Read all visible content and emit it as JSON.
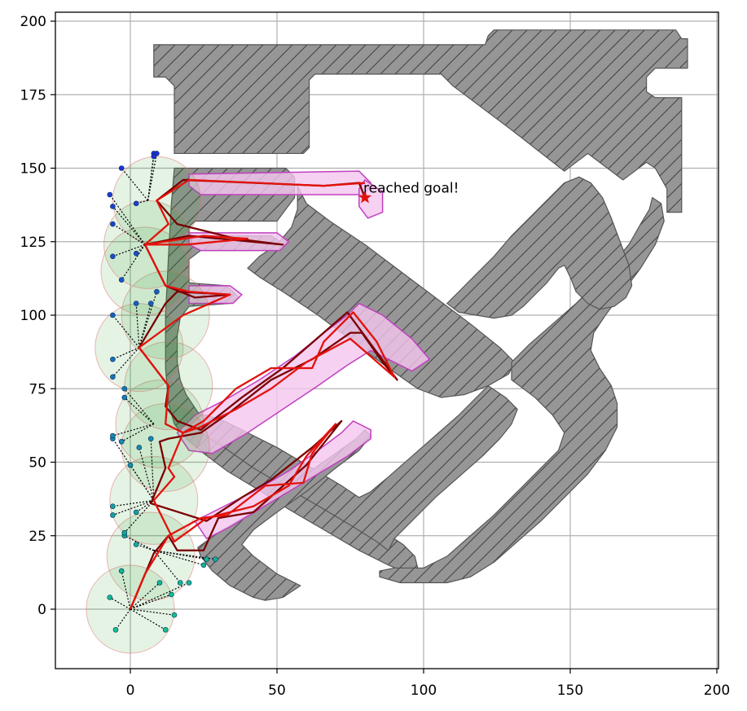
{
  "chart_data": {
    "type": "scatter",
    "title": "",
    "xlabel": "",
    "ylabel": "",
    "xlim": [
      -25,
      200
    ],
    "ylim": [
      -20,
      203
    ],
    "xticks": [
      0,
      50,
      100,
      150,
      200
    ],
    "yticks": [
      0,
      25,
      50,
      75,
      100,
      125,
      150,
      175,
      200
    ],
    "xtick_labels": [
      "0",
      "50",
      "100",
      "150",
      "200"
    ],
    "ytick_labels": [
      "0",
      "25",
      "50",
      "75",
      "100",
      "125",
      "150",
      "175",
      "200"
    ],
    "grid": true,
    "annotation": {
      "text": "reached goal!",
      "x": 80,
      "y": 140
    },
    "goal": {
      "x": 80,
      "y": 140
    },
    "colors": {
      "obstacle_fill": "#969696",
      "obstacle_edge": "#555555",
      "path": "#e3120b",
      "ref_path": "#7a0000",
      "region_fill": "#f4c6ee",
      "region_edge": "#c040c0",
      "circle_fill": "#2ca02c",
      "circle_edge": "#e07070",
      "goal": "#e3120b",
      "grid": "#b0b0b0"
    },
    "obstacles": [
      [
        [
          8,
          190
        ],
        [
          8,
          192
        ],
        [
          121,
          192
        ],
        [
          122,
          195
        ],
        [
          124,
          197
        ],
        [
          186,
          197
        ],
        [
          188,
          194
        ],
        [
          190,
          194
        ],
        [
          190,
          184
        ],
        [
          179,
          184
        ],
        [
          177,
          182
        ],
        [
          176,
          176
        ],
        [
          179,
          172
        ],
        [
          184,
          172
        ],
        [
          188,
          168
        ],
        [
          188,
          135
        ],
        [
          186,
          133
        ],
        [
          183,
          133
        ],
        [
          170,
          147
        ],
        [
          169,
          152
        ],
        [
          166,
          154
        ],
        [
          158,
          148
        ],
        [
          157,
          144
        ],
        [
          154,
          141
        ],
        [
          130,
          160
        ],
        [
          124,
          164
        ],
        [
          111,
          172
        ],
        [
          104,
          178
        ],
        [
          106,
          182
        ],
        [
          63,
          182
        ],
        [
          61,
          180
        ],
        [
          61,
          158
        ],
        [
          59,
          155
        ],
        [
          15,
          155
        ],
        [
          15,
          150
        ],
        [
          53,
          150
        ],
        [
          56,
          147
        ],
        [
          56,
          119
        ],
        [
          60,
          113
        ],
        [
          73,
          107
        ],
        [
          89,
          98
        ],
        [
          99,
          90
        ],
        [
          111,
          80
        ],
        [
          129,
          71
        ],
        [
          131,
          70
        ],
        [
          131,
          67
        ],
        [
          137,
          64
        ],
        [
          141,
          61
        ],
        [
          139,
          57
        ],
        [
          134,
          53
        ],
        [
          128,
          49
        ],
        [
          121,
          45
        ],
        [
          112,
          38
        ],
        [
          96,
          30
        ],
        [
          88,
          25
        ],
        [
          78,
          20
        ],
        [
          70,
          15
        ],
        [
          60,
          8
        ],
        [
          52,
          4
        ],
        [
          48,
          3
        ],
        [
          45,
          4
        ],
        [
          44,
          4
        ],
        [
          34,
          8
        ],
        [
          26,
          15
        ],
        [
          23,
          21
        ],
        [
          24,
          21
        ],
        [
          32,
          27
        ],
        [
          43,
          33
        ],
        [
          55,
          42
        ],
        [
          63,
          48
        ],
        [
          71,
          54
        ],
        [
          79,
          60
        ],
        [
          82,
          59
        ],
        [
          86,
          55
        ],
        [
          88,
          52
        ],
        [
          92,
          48
        ],
        [
          100,
          41
        ],
        [
          110,
          33
        ],
        [
          117,
          28
        ],
        [
          120,
          28
        ],
        [
          124,
          31
        ],
        [
          127,
          33
        ],
        [
          132,
          37
        ],
        [
          124,
          46
        ],
        [
          120,
          51
        ],
        [
          117,
          55
        ],
        [
          114,
          59
        ],
        [
          106,
          65
        ],
        [
          96,
          74
        ],
        [
          90,
          79
        ],
        [
          88,
          83
        ],
        [
          85,
          86
        ],
        [
          80,
          92
        ],
        [
          74,
          97
        ],
        [
          70,
          101
        ],
        [
          68,
          104
        ],
        [
          62,
          107
        ],
        [
          53,
          112
        ],
        [
          47,
          116
        ],
        [
          43,
          120
        ],
        [
          40,
          123
        ],
        [
          37,
          124
        ],
        [
          32,
          124
        ],
        [
          27,
          120
        ],
        [
          25,
          117
        ],
        [
          21,
          112
        ],
        [
          18,
          107
        ],
        [
          15,
          103
        ],
        [
          13,
          98
        ],
        [
          12,
          93
        ],
        [
          12,
          87
        ],
        [
          13,
          82
        ],
        [
          15,
          77
        ],
        [
          18,
          72
        ],
        [
          20,
          68
        ],
        [
          23,
          64
        ],
        [
          27,
          60
        ],
        [
          32,
          57
        ],
        [
          37,
          55
        ],
        [
          41,
          53
        ],
        [
          44,
          50
        ],
        [
          46,
          47
        ],
        [
          47,
          43
        ],
        [
          47,
          38
        ],
        [
          45,
          34
        ],
        [
          42,
          31
        ],
        [
          38,
          29
        ],
        [
          33,
          28
        ],
        [
          28,
          27
        ],
        [
          24,
          26
        ],
        [
          20,
          26
        ],
        [
          15,
          26
        ],
        [
          13,
          28
        ],
        [
          13,
          33
        ],
        [
          14,
          38
        ],
        [
          16,
          44
        ],
        [
          18,
          50
        ],
        [
          19,
          56
        ],
        [
          19,
          62
        ],
        [
          18,
          68
        ],
        [
          15,
          73
        ],
        [
          12,
          78
        ],
        [
          12,
          82
        ],
        [
          11,
          88
        ],
        [
          11,
          95
        ],
        [
          12,
          101
        ],
        [
          14,
          107
        ],
        [
          17,
          113
        ],
        [
          20,
          118
        ],
        [
          24,
          124
        ],
        [
          28,
          127
        ],
        [
          33,
          130
        ],
        [
          40,
          132
        ],
        [
          48,
          132
        ],
        [
          54,
          130
        ],
        [
          60,
          127
        ],
        [
          65,
          125
        ],
        [
          70,
          122
        ],
        [
          74,
          118
        ],
        [
          78,
          115
        ],
        [
          85,
          111
        ],
        [
          92,
          107
        ],
        [
          100,
          103
        ],
        [
          108,
          100
        ],
        [
          116,
          97
        ],
        [
          124,
          93
        ],
        [
          130,
          90
        ],
        [
          137,
          86
        ],
        [
          141,
          82
        ],
        [
          142,
          79
        ],
        [
          140,
          75
        ],
        [
          137,
          73
        ],
        [
          132,
          70
        ],
        [
          127,
          67
        ],
        [
          124,
          66
        ],
        [
          121,
          66
        ],
        [
          118,
          67
        ],
        [
          115,
          69
        ],
        [
          112,
          72
        ],
        [
          108,
          76
        ],
        [
          102,
          80
        ],
        [
          97,
          84
        ],
        [
          92,
          89
        ],
        [
          88,
          93
        ],
        [
          84,
          98
        ],
        [
          80,
          103
        ],
        [
          77,
          107
        ],
        [
          75,
          111
        ],
        [
          74,
          115
        ],
        [
          74,
          120
        ],
        [
          76,
          124
        ],
        [
          79,
          127
        ],
        [
          82,
          129
        ],
        [
          86,
          130
        ],
        [
          91,
          131
        ],
        [
          96,
          131
        ],
        [
          101,
          130
        ],
        [
          106,
          128
        ],
        [
          110,
          126
        ],
        [
          114,
          124
        ],
        [
          118,
          122
        ],
        [
          123,
          119
        ],
        [
          128,
          117
        ],
        [
          134,
          115
        ],
        [
          140,
          113
        ],
        [
          146,
          112
        ],
        [
          152,
          111
        ],
        [
          157,
          111
        ],
        [
          162,
          112
        ],
        [
          166,
          114
        ],
        [
          170,
          117
        ],
        [
          174,
          121
        ],
        [
          178,
          125
        ],
        [
          182,
          130
        ],
        [
          186,
          135
        ],
        [
          188,
          140
        ],
        [
          190,
          145
        ],
        [
          190,
          150
        ],
        [
          188,
          155
        ],
        [
          185,
          158
        ],
        [
          181,
          160
        ],
        [
          176,
          161
        ],
        [
          170,
          161
        ],
        [
          165,
          160
        ],
        [
          160,
          158
        ],
        [
          155,
          156
        ],
        [
          150,
          154
        ],
        [
          145,
          153
        ],
        [
          140,
          153
        ],
        [
          135,
          154
        ],
        [
          130,
          156
        ],
        [
          125,
          159
        ],
        [
          120,
          162
        ],
        [
          115,
          165
        ],
        [
          110,
          168
        ],
        [
          105,
          172
        ],
        [
          100,
          176
        ],
        [
          95,
          179
        ],
        [
          90,
          182
        ],
        [
          85,
          184
        ],
        [
          80,
          186
        ],
        [
          75,
          188
        ],
        [
          70,
          189
        ],
        [
          65,
          190
        ],
        [
          60,
          190
        ],
        [
          55,
          189
        ],
        [
          50,
          188
        ],
        [
          45,
          186
        ],
        [
          40,
          184
        ],
        [
          35,
          182
        ],
        [
          30,
          180
        ],
        [
          25,
          178
        ],
        [
          20,
          176
        ],
        [
          15,
          174
        ],
        [
          10,
          172
        ],
        [
          8,
          170
        ],
        [
          8,
          190
        ]
      ]
    ]
  }
}
